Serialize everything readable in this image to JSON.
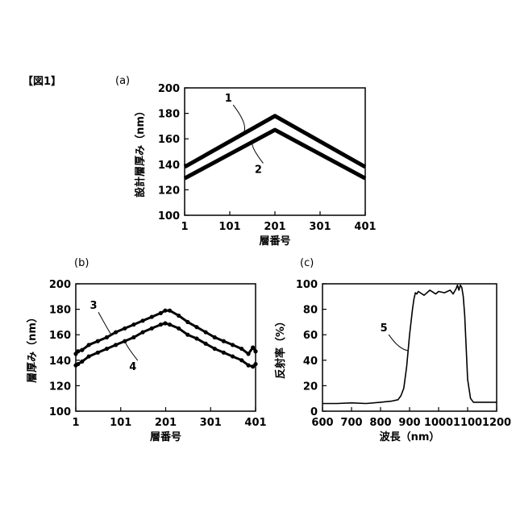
{
  "figure_label": "【図1】",
  "chart_data": [
    {
      "id": "a",
      "type": "line",
      "panel_label": "(a)",
      "xlabel": "層番号",
      "ylabel": "設計層厚み（nm）",
      "xlim": [
        1,
        401
      ],
      "ylim": [
        100,
        200
      ],
      "xticks": [
        1,
        101,
        201,
        301,
        401
      ],
      "yticks": [
        100,
        120,
        140,
        160,
        180,
        200
      ],
      "grid": false,
      "series": [
        {
          "x": [
            1,
            201,
            401
          ],
          "y": [
            138,
            178,
            138
          ]
        },
        {
          "x": [
            1,
            201,
            401
          ],
          "y": [
            129,
            167,
            129
          ]
        }
      ],
      "annotations": [
        {
          "text": "1",
          "series": 0,
          "x": 130
        },
        {
          "text": "2",
          "series": 1,
          "x": 150
        }
      ]
    },
    {
      "id": "b",
      "type": "scatter",
      "panel_label": "(b)",
      "xlabel": "層番号",
      "ylabel": "層厚み（nm）",
      "xlim": [
        1,
        401
      ],
      "ylim": [
        100,
        200
      ],
      "xticks": [
        1,
        101,
        201,
        301,
        401
      ],
      "yticks": [
        100,
        120,
        140,
        160,
        180,
        200
      ],
      "grid": false,
      "series": [
        {
          "x": [
            1,
            6,
            15,
            30,
            50,
            70,
            90,
            110,
            130,
            150,
            170,
            190,
            200,
            210,
            230,
            250,
            270,
            290,
            310,
            330,
            350,
            370,
            385,
            395,
            401
          ],
          "y": [
            145,
            147,
            148,
            152,
            155,
            158,
            162,
            165,
            168,
            171,
            174,
            177,
            179,
            179,
            175,
            170,
            166,
            162,
            158,
            155,
            152,
            149,
            145,
            150,
            147
          ]
        },
        {
          "x": [
            1,
            6,
            15,
            30,
            50,
            70,
            90,
            110,
            130,
            150,
            170,
            190,
            200,
            210,
            230,
            250,
            270,
            290,
            310,
            330,
            350,
            370,
            385,
            395,
            401
          ],
          "y": [
            136,
            137,
            139,
            143,
            146,
            149,
            152,
            155,
            158,
            162,
            165,
            168,
            169,
            168,
            165,
            160,
            157,
            153,
            149,
            146,
            143,
            140,
            136,
            135,
            137
          ]
        }
      ],
      "annotations": [
        {
          "text": "3",
          "series": 0,
          "x": 80
        },
        {
          "text": "4",
          "series": 1,
          "x": 110
        }
      ]
    },
    {
      "id": "c",
      "type": "line",
      "panel_label": "(c)",
      "xlabel": "波長（nm）",
      "ylabel": "反射率（%）",
      "xlim": [
        600,
        1200
      ],
      "ylim": [
        0,
        100
      ],
      "xticks": [
        600,
        700,
        800,
        900,
        1000,
        1100,
        1200
      ],
      "xtick_labels": [
        "600",
        "700",
        "800",
        "900",
        "1000",
        "1100",
        "1200"
      ],
      "yticks": [
        0,
        20,
        40,
        60,
        80,
        100
      ],
      "grid": false,
      "series": [
        {
          "x": [
            600,
            650,
            700,
            750,
            800,
            840,
            860,
            870,
            880,
            890,
            900,
            910,
            915,
            920,
            925,
            930,
            950,
            970,
            990,
            1000,
            1020,
            1040,
            1050,
            1060,
            1065,
            1070,
            1075,
            1080,
            1085,
            1090,
            1095,
            1100,
            1110,
            1120,
            1200
          ],
          "y": [
            6,
            6,
            6.5,
            6,
            7,
            8,
            9,
            12,
            18,
            35,
            60,
            80,
            88,
            93,
            92,
            94,
            91,
            95,
            92,
            94,
            93,
            95,
            92,
            96,
            99,
            95,
            99,
            97,
            90,
            75,
            50,
            25,
            10,
            7,
            7
          ]
        }
      ],
      "annotations": [
        {
          "text": "5",
          "series": 0,
          "x": 895
        }
      ]
    }
  ]
}
